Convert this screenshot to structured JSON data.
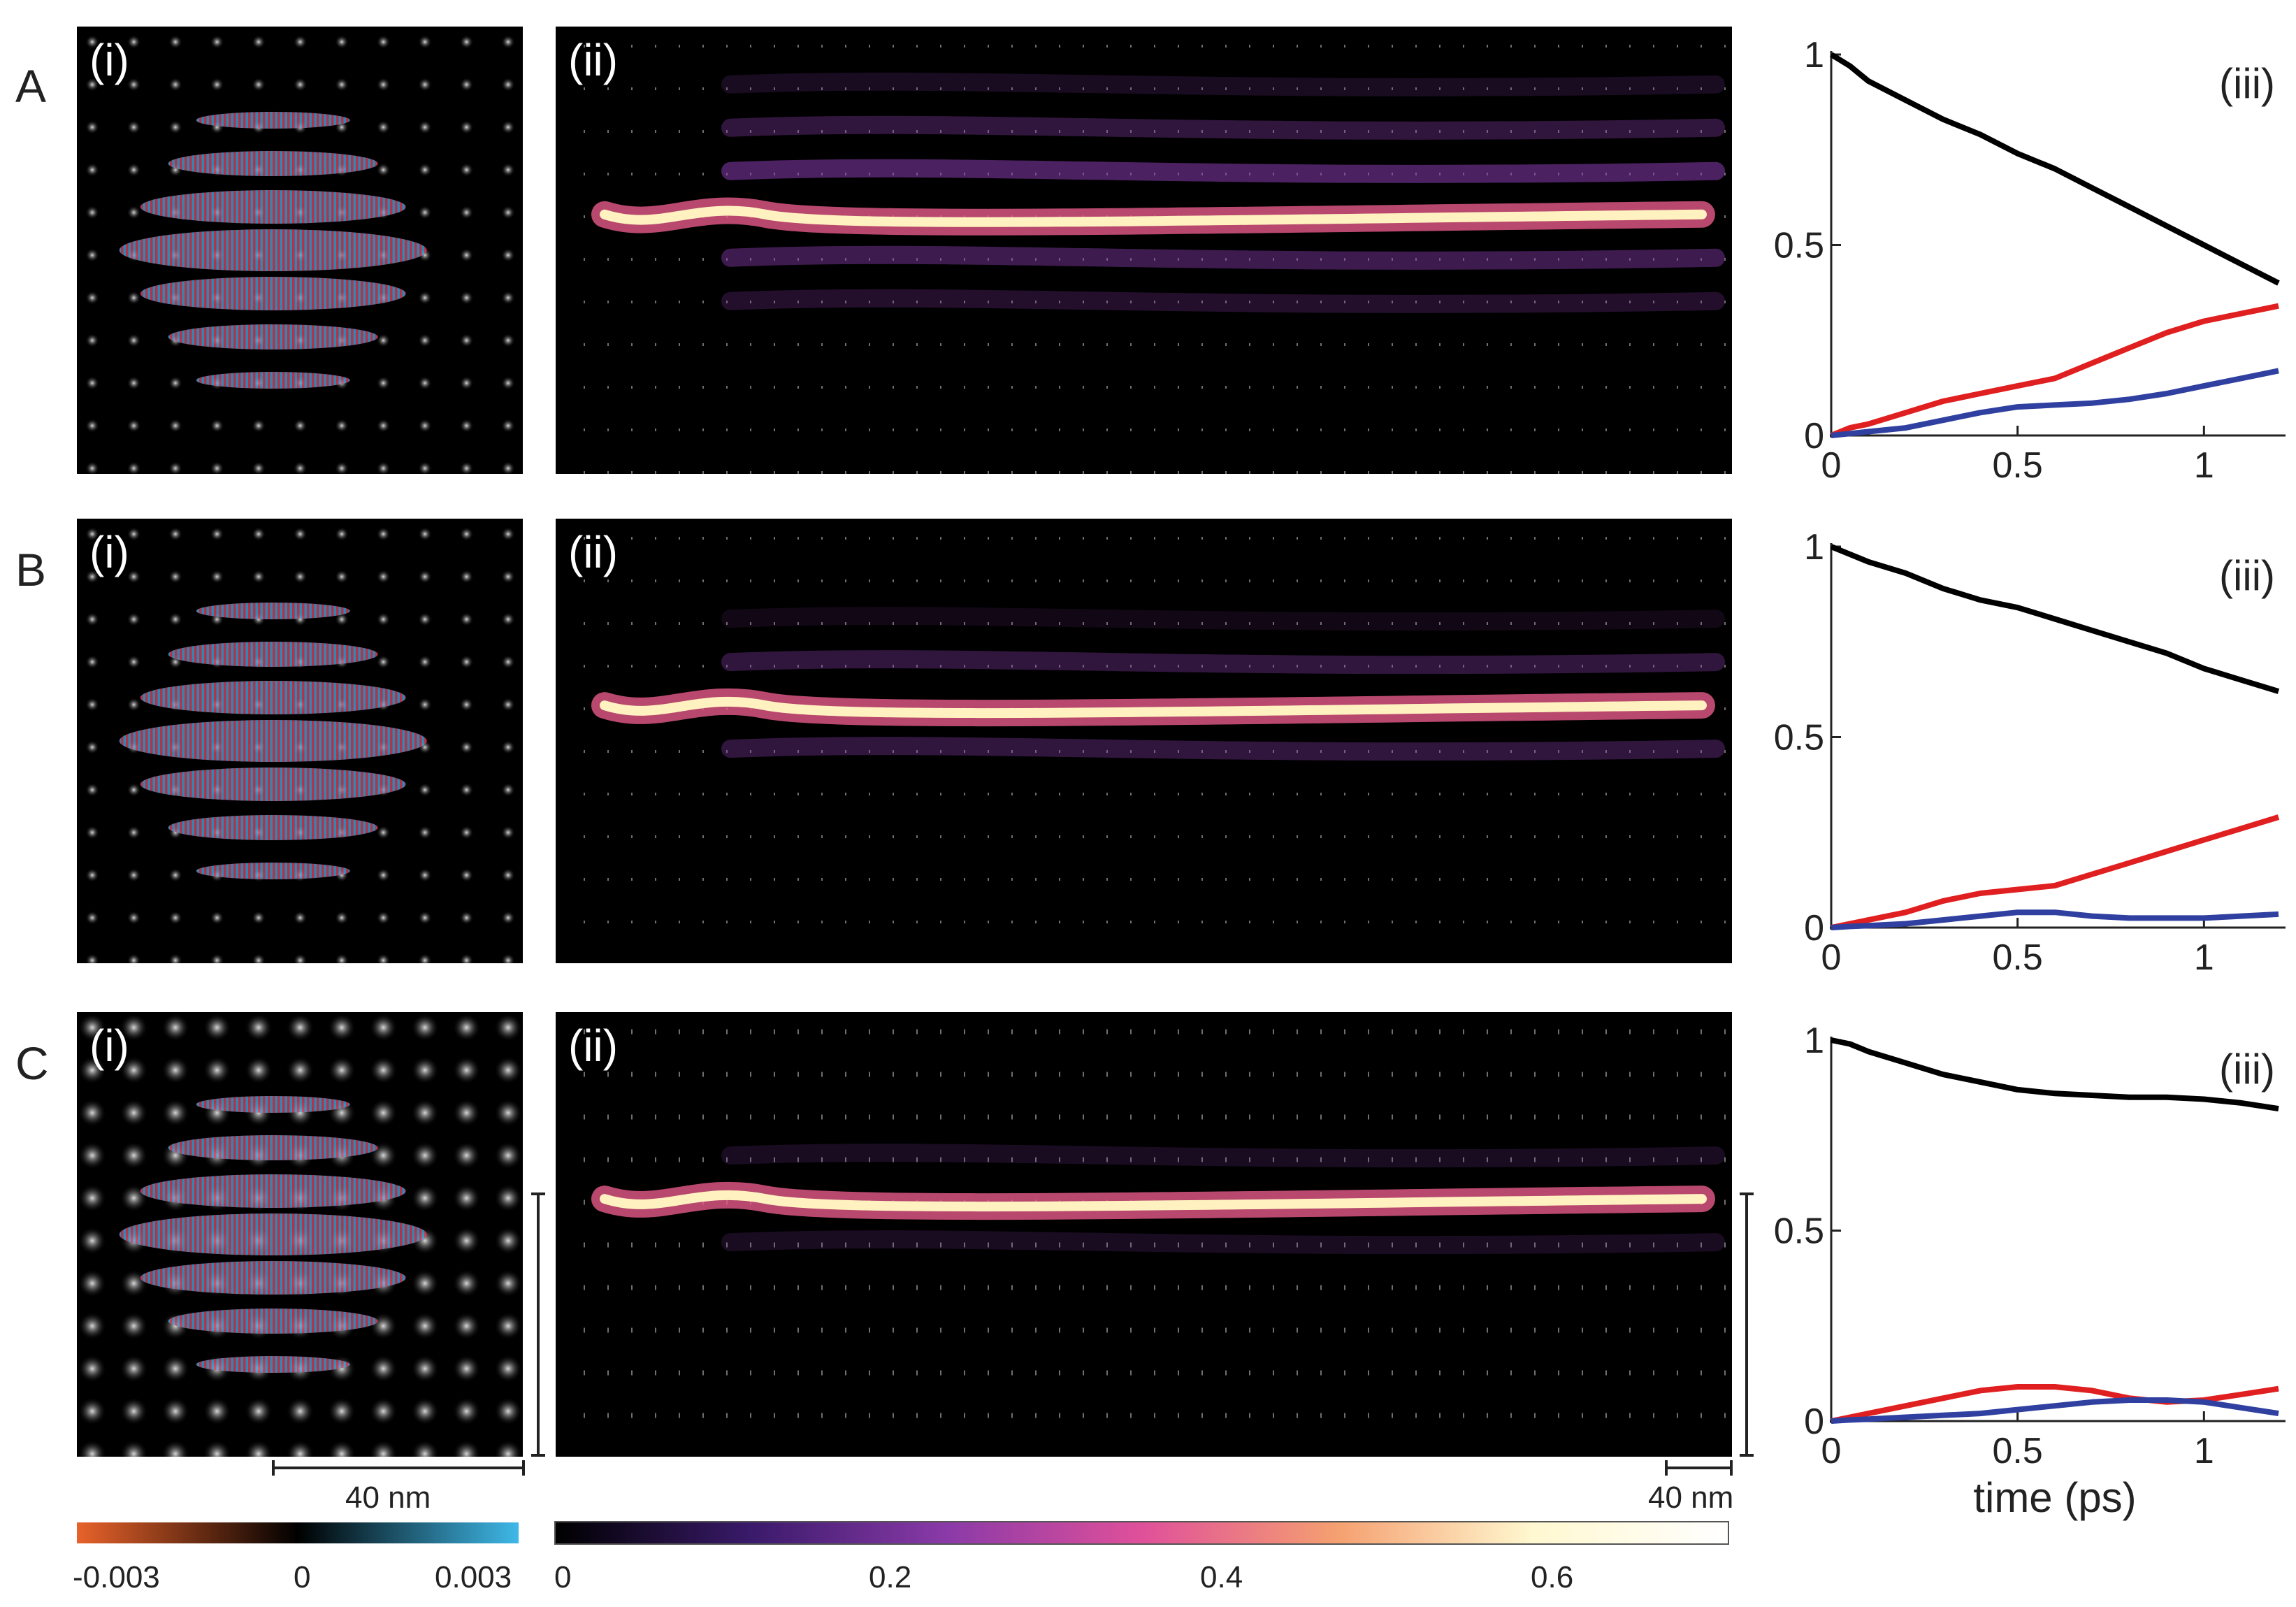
{
  "rows": [
    {
      "letter": "A",
      "panel_i": "(i)",
      "panel_ii": "(ii)",
      "panel_iii": "(iii)"
    },
    {
      "letter": "B",
      "panel_i": "(i)",
      "panel_ii": "(ii)",
      "panel_iii": "(iii)"
    },
    {
      "letter": "C",
      "panel_i": "(i)",
      "panel_ii": "(ii)",
      "panel_iii": "(iii)"
    }
  ],
  "scalebar_i": "40 nm",
  "scalebar_ii": "40 nm",
  "colorbar_left": {
    "ticks": [
      "-0.003",
      "0",
      "0.003"
    ],
    "colors": [
      "#e8622a",
      "#000000",
      "#3fb8e8"
    ]
  },
  "colorbar_right": {
    "ticks": [
      "0",
      "0.2",
      "0.4",
      "0.6"
    ],
    "colors": [
      "#000000",
      "#3a1a6a",
      "#8a3aa8",
      "#e0509a",
      "#f5a070",
      "#fff8d0",
      "#ffffff"
    ]
  },
  "chart_data": [
    {
      "type": "line",
      "panel": "A(iii)",
      "xlabel": "",
      "ylabel": "",
      "xlim": [
        0,
        1.2
      ],
      "ylim": [
        0,
        1
      ],
      "xticks": [
        "0",
        "0.5",
        "1"
      ],
      "yticks": [
        "0",
        "0.5",
        "1"
      ],
      "series": [
        {
          "color": "#000000",
          "x": [
            0,
            0.05,
            0.1,
            0.2,
            0.3,
            0.4,
            0.5,
            0.6,
            0.7,
            0.8,
            0.9,
            1.0,
            1.1,
            1.2
          ],
          "y": [
            1.0,
            0.97,
            0.93,
            0.88,
            0.83,
            0.79,
            0.74,
            0.7,
            0.65,
            0.6,
            0.55,
            0.5,
            0.45,
            0.4
          ]
        },
        {
          "color": "#e02020",
          "x": [
            0,
            0.05,
            0.1,
            0.2,
            0.3,
            0.4,
            0.5,
            0.6,
            0.7,
            0.8,
            0.9,
            1.0,
            1.1,
            1.2
          ],
          "y": [
            0.0,
            0.02,
            0.03,
            0.06,
            0.09,
            0.11,
            0.13,
            0.15,
            0.19,
            0.23,
            0.27,
            0.3,
            0.32,
            0.34
          ]
        },
        {
          "color": "#3040a0",
          "x": [
            0,
            0.05,
            0.1,
            0.2,
            0.3,
            0.4,
            0.5,
            0.6,
            0.7,
            0.8,
            0.9,
            1.0,
            1.1,
            1.2
          ],
          "y": [
            0.0,
            0.005,
            0.01,
            0.02,
            0.04,
            0.06,
            0.075,
            0.08,
            0.085,
            0.095,
            0.11,
            0.13,
            0.15,
            0.17
          ]
        }
      ]
    },
    {
      "type": "line",
      "panel": "B(iii)",
      "xlabel": "",
      "ylabel": "",
      "xlim": [
        0,
        1.2
      ],
      "ylim": [
        0,
        1
      ],
      "xticks": [
        "0",
        "0.5",
        "1"
      ],
      "yticks": [
        "0",
        "0.5",
        "1"
      ],
      "series": [
        {
          "color": "#000000",
          "x": [
            0,
            0.05,
            0.1,
            0.2,
            0.3,
            0.4,
            0.5,
            0.6,
            0.7,
            0.8,
            0.9,
            1.0,
            1.1,
            1.2
          ],
          "y": [
            1.0,
            0.98,
            0.96,
            0.93,
            0.89,
            0.86,
            0.84,
            0.81,
            0.78,
            0.75,
            0.72,
            0.68,
            0.65,
            0.62
          ]
        },
        {
          "color": "#e02020",
          "x": [
            0,
            0.05,
            0.1,
            0.2,
            0.3,
            0.4,
            0.5,
            0.6,
            0.7,
            0.8,
            0.9,
            1.0,
            1.1,
            1.2
          ],
          "y": [
            0.0,
            0.01,
            0.02,
            0.04,
            0.07,
            0.09,
            0.1,
            0.11,
            0.14,
            0.17,
            0.2,
            0.23,
            0.26,
            0.29
          ]
        },
        {
          "color": "#3040a0",
          "x": [
            0,
            0.05,
            0.1,
            0.2,
            0.3,
            0.4,
            0.5,
            0.6,
            0.7,
            0.8,
            0.9,
            1.0,
            1.1,
            1.2
          ],
          "y": [
            0.0,
            0.003,
            0.005,
            0.01,
            0.02,
            0.03,
            0.04,
            0.04,
            0.03,
            0.025,
            0.025,
            0.025,
            0.03,
            0.035
          ]
        }
      ]
    },
    {
      "type": "line",
      "panel": "C(iii)",
      "xlabel": "time (ps)",
      "ylabel": "",
      "xlim": [
        0,
        1.2
      ],
      "ylim": [
        0,
        1
      ],
      "xticks": [
        "0",
        "0.5",
        "1"
      ],
      "yticks": [
        "0",
        "0.5",
        "1"
      ],
      "series": [
        {
          "color": "#000000",
          "x": [
            0,
            0.05,
            0.1,
            0.2,
            0.3,
            0.4,
            0.5,
            0.6,
            0.7,
            0.8,
            0.9,
            1.0,
            1.1,
            1.2
          ],
          "y": [
            1.0,
            0.99,
            0.97,
            0.94,
            0.91,
            0.89,
            0.87,
            0.86,
            0.855,
            0.85,
            0.85,
            0.845,
            0.835,
            0.82
          ]
        },
        {
          "color": "#e02020",
          "x": [
            0,
            0.05,
            0.1,
            0.2,
            0.3,
            0.4,
            0.5,
            0.6,
            0.7,
            0.8,
            0.9,
            1.0,
            1.1,
            1.2
          ],
          "y": [
            0.0,
            0.01,
            0.02,
            0.04,
            0.06,
            0.08,
            0.09,
            0.09,
            0.08,
            0.06,
            0.05,
            0.055,
            0.07,
            0.085
          ]
        },
        {
          "color": "#3040a0",
          "x": [
            0,
            0.05,
            0.1,
            0.2,
            0.3,
            0.4,
            0.5,
            0.6,
            0.7,
            0.8,
            0.9,
            1.0,
            1.1,
            1.2
          ],
          "y": [
            0.0,
            0.003,
            0.005,
            0.01,
            0.015,
            0.02,
            0.03,
            0.04,
            0.05,
            0.055,
            0.055,
            0.05,
            0.035,
            0.02
          ]
        }
      ]
    }
  ]
}
